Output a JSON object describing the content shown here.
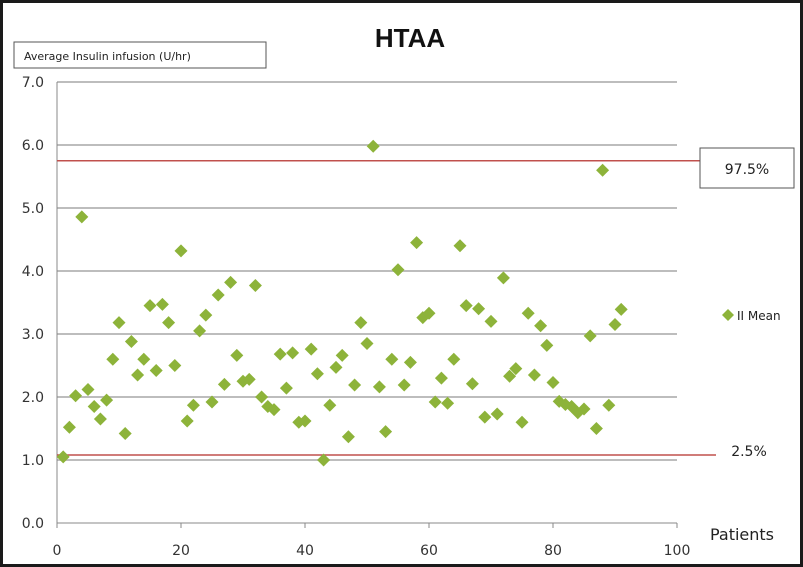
{
  "chart_data": {
    "type": "scatter",
    "title": "HTAA",
    "ylabel": "Average Insulin  infusion  (U/hr)",
    "xlabel": "Patients",
    "xlim": [
      0,
      100
    ],
    "ylim": [
      0,
      7
    ],
    "x_ticks": [
      "0",
      "20",
      "40",
      "60",
      "80",
      "100"
    ],
    "y_ticks": [
      "0.0",
      "1.0",
      "2.0",
      "3.0",
      "4.0",
      "5.0",
      "6.0",
      "7.0"
    ],
    "grid": "horizontal",
    "legend_position": "right",
    "series": [
      {
        "name": "II Mean",
        "color": "#8db33a",
        "marker": "diamond",
        "x": [
          1,
          2,
          3,
          4,
          5,
          6,
          7,
          8,
          9,
          10,
          11,
          12,
          13,
          14,
          15,
          16,
          17,
          18,
          19,
          20,
          21,
          22,
          23,
          24,
          25,
          26,
          27,
          28,
          29,
          30,
          31,
          32,
          33,
          34,
          35,
          36,
          37,
          38,
          39,
          40,
          41,
          42,
          43,
          44,
          45,
          46,
          47,
          48,
          49,
          50,
          51,
          52,
          53,
          54,
          55,
          56,
          57,
          58,
          59,
          60,
          61,
          62,
          63,
          64,
          65,
          66,
          67,
          68,
          69,
          70,
          71,
          72,
          73,
          74,
          75,
          76,
          77,
          78,
          79,
          80,
          81,
          82,
          83,
          84,
          85,
          86,
          87,
          88,
          89,
          90,
          91
        ],
        "y": [
          1.05,
          1.52,
          2.02,
          4.86,
          2.12,
          1.85,
          1.65,
          1.95,
          2.6,
          3.18,
          1.42,
          2.88,
          2.35,
          2.6,
          3.45,
          2.42,
          3.47,
          3.18,
          2.5,
          4.32,
          1.62,
          1.87,
          3.05,
          3.3,
          1.92,
          3.62,
          2.2,
          3.82,
          2.66,
          2.25,
          2.28,
          3.77,
          2.0,
          1.85,
          1.8,
          2.68,
          2.14,
          2.7,
          1.6,
          1.62,
          2.76,
          2.37,
          1.0,
          1.87,
          2.47,
          2.66,
          1.37,
          2.19,
          3.18,
          2.85,
          5.98,
          2.16,
          1.45,
          2.6,
          4.02,
          2.19,
          2.55,
          4.45,
          3.26,
          3.33,
          1.92,
          2.3,
          1.9,
          2.6,
          4.4,
          3.45,
          2.21,
          3.4,
          1.68,
          3.2,
          1.73,
          3.89,
          2.33,
          2.45,
          1.6,
          3.33,
          2.35,
          3.13,
          2.82,
          2.23,
          1.93,
          1.88,
          1.85,
          1.75,
          1.81,
          2.97,
          1.5,
          5.6,
          1.87,
          3.15,
          3.39
        ]
      }
    ],
    "reference_lines": [
      {
        "label": "97.5%",
        "value": 5.75,
        "color": "#c0504d"
      },
      {
        "label": "2.5%",
        "value": 1.08,
        "color": "#c0504d"
      }
    ]
  }
}
